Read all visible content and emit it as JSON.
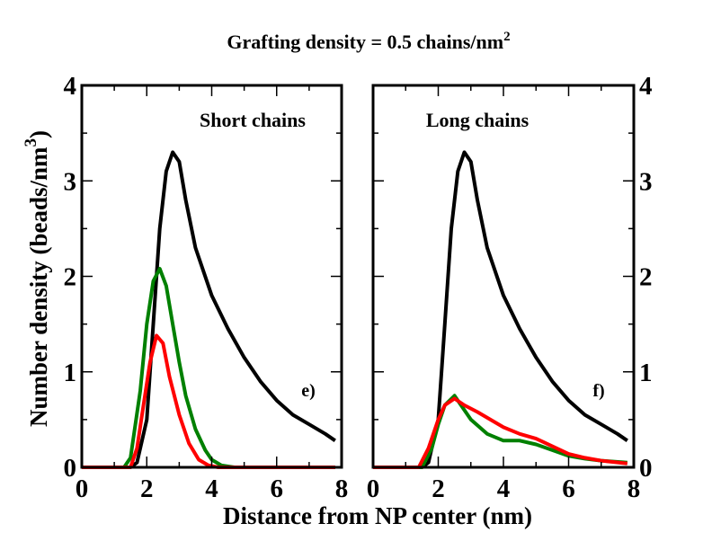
{
  "chart_data": [
    {
      "type": "line",
      "panel": "e)",
      "title": "Grafting density = 0.5 chains/nm",
      "title_superscript": "2",
      "annotation": "Short chains",
      "xlabel": "Distance from NP center (nm)",
      "ylabel": "Number density (beads/nm",
      "ylabel_superscript": "3",
      "ylabel_close": ")",
      "xlim": [
        0,
        8
      ],
      "ylim": [
        0,
        4
      ],
      "xticks": [
        "0",
        "2",
        "4",
        "6",
        "8"
      ],
      "yticks": [
        "0",
        "1",
        "2",
        "3",
        "4"
      ],
      "grid": false,
      "series": [
        {
          "color": "#000000",
          "x": [
            0,
            1.5,
            1.7,
            2.0,
            2.2,
            2.4,
            2.6,
            2.8,
            3.0,
            3.2,
            3.5,
            4,
            4.5,
            5,
            5.5,
            6,
            6.5,
            7,
            7.5,
            7.8
          ],
          "y": [
            0,
            0,
            0.05,
            0.5,
            1.5,
            2.5,
            3.1,
            3.3,
            3.2,
            2.8,
            2.3,
            1.8,
            1.45,
            1.15,
            0.9,
            0.7,
            0.55,
            0.45,
            0.35,
            0.28
          ]
        },
        {
          "color": "#008000",
          "x": [
            0,
            1.3,
            1.5,
            1.8,
            2.0,
            2.2,
            2.4,
            2.6,
            2.8,
            3.0,
            3.2,
            3.5,
            3.8,
            4.0,
            4.3,
            4.7,
            7.8
          ],
          "y": [
            0,
            0,
            0.1,
            0.8,
            1.5,
            1.95,
            2.08,
            1.9,
            1.5,
            1.1,
            0.75,
            0.4,
            0.18,
            0.08,
            0.02,
            0,
            0
          ]
        },
        {
          "color": "#ff0000",
          "x": [
            0,
            1.5,
            1.7,
            1.9,
            2.1,
            2.3,
            2.5,
            2.7,
            3.0,
            3.3,
            3.6,
            3.9,
            4.2,
            7.8
          ],
          "y": [
            0,
            0,
            0.2,
            0.65,
            1.1,
            1.38,
            1.3,
            0.95,
            0.55,
            0.25,
            0.08,
            0.02,
            0,
            0
          ]
        }
      ]
    },
    {
      "type": "line",
      "panel": "f)",
      "annotation": "Long chains",
      "xlim": [
        0,
        8
      ],
      "ylim": [
        0,
        4
      ],
      "xticks": [
        "0",
        "2",
        "4",
        "6",
        "8"
      ],
      "yticks": [
        "0",
        "1",
        "2",
        "3",
        "4"
      ],
      "grid": false,
      "series": [
        {
          "color": "#000000",
          "x": [
            0,
            1.5,
            1.7,
            2.0,
            2.2,
            2.4,
            2.6,
            2.8,
            3.0,
            3.2,
            3.5,
            4,
            4.5,
            5,
            5.5,
            6,
            6.5,
            7,
            7.5,
            7.8
          ],
          "y": [
            0,
            0,
            0.05,
            0.5,
            1.5,
            2.5,
            3.1,
            3.3,
            3.2,
            2.8,
            2.3,
            1.8,
            1.45,
            1.15,
            0.9,
            0.7,
            0.55,
            0.45,
            0.35,
            0.28
          ]
        },
        {
          "color": "#008000",
          "x": [
            0,
            1.5,
            1.8,
            2.0,
            2.2,
            2.5,
            2.8,
            3.0,
            3.5,
            4.0,
            4.5,
            5.0,
            5.5,
            6.0,
            6.5,
            7.0,
            7.8
          ],
          "y": [
            0,
            0,
            0.2,
            0.45,
            0.65,
            0.75,
            0.6,
            0.5,
            0.35,
            0.28,
            0.28,
            0.24,
            0.18,
            0.12,
            0.09,
            0.07,
            0.05
          ]
        },
        {
          "color": "#ff0000",
          "x": [
            0,
            1.4,
            1.7,
            2.0,
            2.2,
            2.5,
            2.8,
            3.2,
            3.6,
            4.0,
            4.5,
            5.0,
            5.5,
            6.0,
            6.5,
            7.0,
            7.8
          ],
          "y": [
            0,
            0,
            0.2,
            0.5,
            0.65,
            0.72,
            0.65,
            0.58,
            0.5,
            0.42,
            0.35,
            0.3,
            0.22,
            0.14,
            0.1,
            0.07,
            0.04
          ]
        }
      ]
    }
  ]
}
